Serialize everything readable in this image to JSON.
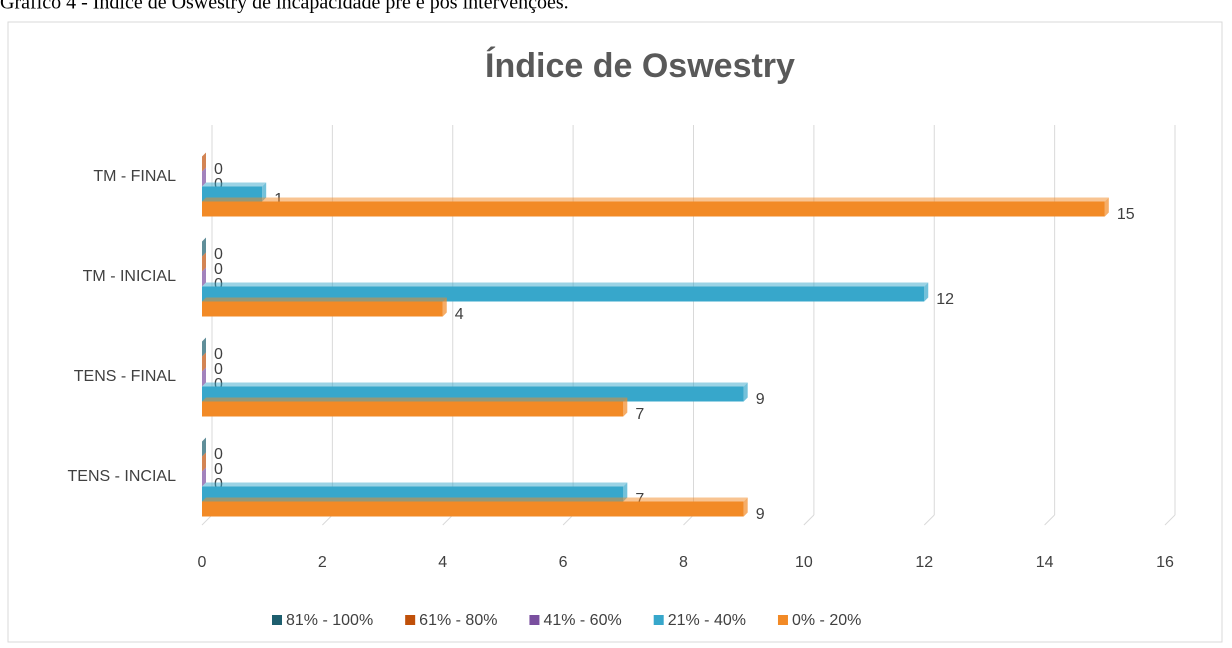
{
  "caption": "Gráfico 4 - Índice de Oswestry de incapacidade pré e pós intervenções.",
  "chart_data": {
    "type": "bar",
    "orientation": "horizontal",
    "title": "Índice de Oswestry",
    "categories": [
      "TENS - INCIAL",
      "TENS - FINAL",
      "TM - INICIAL",
      "TM - FINAL"
    ],
    "series": [
      {
        "name": "81% - 100%",
        "color": "#1d5e6e",
        "values": [
          0,
          0,
          0,
          null
        ]
      },
      {
        "name": "61% - 80%",
        "color": "#c0500a",
        "values": [
          0,
          0,
          0,
          0
        ]
      },
      {
        "name": "41% - 60%",
        "color": "#7a4f9f",
        "values": [
          0,
          0,
          0,
          0
        ]
      },
      {
        "name": "21% - 40%",
        "color": "#37a7cb",
        "values": [
          7,
          9,
          12,
          1
        ]
      },
      {
        "name": "0% - 20%",
        "color": "#f28a26",
        "values": [
          9,
          7,
          4,
          15
        ]
      }
    ],
    "xlim": [
      0,
      16
    ],
    "xticks": [
      0,
      2,
      4,
      6,
      8,
      10,
      12,
      14,
      16
    ],
    "grid": true,
    "legend": "bottom"
  }
}
